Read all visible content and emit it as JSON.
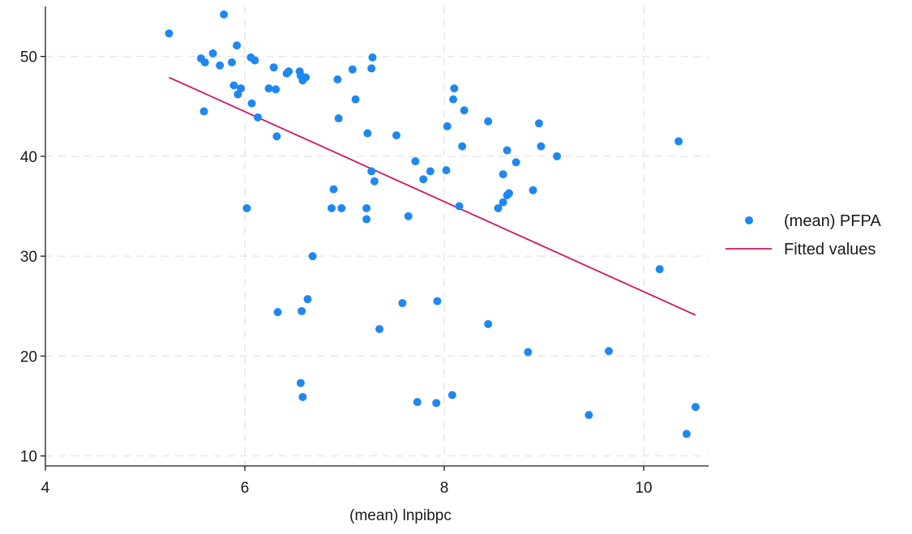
{
  "chart_data": {
    "type": "scatter",
    "title": "",
    "xlabel": "(mean) lnpibpc",
    "ylabel": "",
    "xlim": [
      4,
      10.65
    ],
    "ylim": [
      9,
      55
    ],
    "xticks": [
      4,
      6,
      8,
      10
    ],
    "yticks": [
      10,
      20,
      30,
      40,
      50
    ],
    "grid": true,
    "legend_position": "right",
    "colors": {
      "points": "#1e88f0",
      "fit_line": "#d1175f",
      "grid": "#e6e6e6",
      "axis": "#1a1a1a"
    },
    "series": [
      {
        "name": "(mean) PFPA",
        "kind": "scatter",
        "points": [
          [
            5.24,
            52.3
          ],
          [
            5.79,
            54.2
          ],
          [
            5.56,
            49.8
          ],
          [
            5.6,
            49.4
          ],
          [
            5.68,
            50.3
          ],
          [
            5.75,
            49.1
          ],
          [
            5.87,
            49.4
          ],
          [
            5.89,
            47.1
          ],
          [
            5.92,
            51.1
          ],
          [
            5.93,
            46.2
          ],
          [
            5.96,
            46.8
          ],
          [
            6.06,
            49.9
          ],
          [
            6.1,
            49.6
          ],
          [
            6.07,
            45.3
          ],
          [
            6.13,
            43.9
          ],
          [
            6.24,
            46.8
          ],
          [
            6.29,
            48.9
          ],
          [
            6.31,
            46.7
          ],
          [
            6.32,
            42.0
          ],
          [
            6.42,
            48.3
          ],
          [
            6.44,
            48.5
          ],
          [
            6.55,
            48.5
          ],
          [
            6.56,
            48.1
          ],
          [
            6.58,
            47.6
          ],
          [
            6.61,
            47.9
          ],
          [
            5.59,
            44.5
          ],
          [
            6.02,
            34.8
          ],
          [
            6.68,
            30.0
          ],
          [
            6.33,
            24.4
          ],
          [
            6.57,
            24.5
          ],
          [
            6.63,
            25.7
          ],
          [
            6.56,
            17.3
          ],
          [
            6.58,
            15.9
          ],
          [
            6.93,
            47.7
          ],
          [
            7.08,
            48.7
          ],
          [
            6.94,
            43.8
          ],
          [
            7.11,
            45.7
          ],
          [
            7.28,
            49.9
          ],
          [
            7.27,
            48.8
          ],
          [
            7.23,
            42.3
          ],
          [
            7.27,
            38.5
          ],
          [
            7.3,
            37.5
          ],
          [
            6.89,
            36.7
          ],
          [
            6.87,
            34.8
          ],
          [
            6.97,
            34.8
          ],
          [
            7.22,
            34.8
          ],
          [
            7.22,
            33.7
          ],
          [
            7.35,
            22.7
          ],
          [
            7.52,
            42.1
          ],
          [
            7.58,
            25.3
          ],
          [
            7.64,
            34.0
          ],
          [
            7.71,
            39.5
          ],
          [
            7.79,
            37.7
          ],
          [
            7.86,
            38.5
          ],
          [
            7.93,
            25.5
          ],
          [
            8.02,
            38.6
          ],
          [
            8.03,
            43.0
          ],
          [
            8.1,
            46.8
          ],
          [
            8.09,
            45.7
          ],
          [
            8.2,
            44.6
          ],
          [
            8.18,
            41.0
          ],
          [
            8.15,
            35.0
          ],
          [
            7.73,
            15.4
          ],
          [
            7.92,
            15.3
          ],
          [
            8.08,
            16.1
          ],
          [
            8.44,
            43.5
          ],
          [
            8.44,
            23.2
          ],
          [
            8.59,
            38.2
          ],
          [
            8.63,
            40.6
          ],
          [
            8.72,
            39.4
          ],
          [
            8.59,
            35.4
          ],
          [
            8.65,
            36.3
          ],
          [
            8.63,
            36.1
          ],
          [
            8.54,
            34.8
          ],
          [
            8.95,
            43.3
          ],
          [
            8.97,
            41.0
          ],
          [
            8.89,
            36.6
          ],
          [
            9.13,
            40.0
          ],
          [
            8.84,
            20.4
          ],
          [
            9.45,
            14.1
          ],
          [
            9.65,
            20.5
          ],
          [
            10.16,
            28.7
          ],
          [
            10.35,
            41.5
          ],
          [
            10.43,
            12.2
          ],
          [
            10.52,
            14.9
          ]
        ]
      },
      {
        "name": "Fitted values",
        "kind": "line",
        "points": [
          [
            5.24,
            47.9
          ],
          [
            10.52,
            24.1
          ]
        ]
      }
    ]
  }
}
